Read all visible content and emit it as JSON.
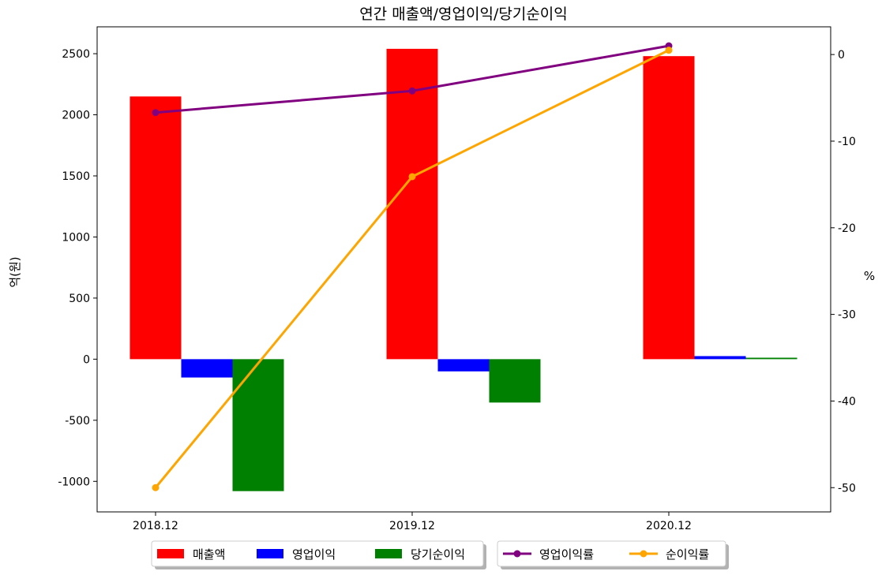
{
  "chart_data": {
    "type": "bar",
    "title": "연간 매출액/영업이익/당기순이익",
    "categories": [
      "2018.12",
      "2019.12",
      "2020.12"
    ],
    "ylabel": "억(원)",
    "y2label": "%",
    "ylim": [
      -1250,
      2720
    ],
    "y2lim": [
      -52.8,
      3.2
    ],
    "yticks": [
      -1000,
      -500,
      0,
      500,
      1000,
      1500,
      2000,
      2500
    ],
    "y2ticks": [
      -50,
      -40,
      -30,
      -20,
      -10,
      0
    ],
    "bar_series": [
      {
        "name": "매출액",
        "color": "#ff0000",
        "values": [
          2150,
          2540,
          2480
        ]
      },
      {
        "name": "영업이익",
        "color": "#0000ff",
        "values": [
          -150,
          -100,
          25
        ]
      },
      {
        "name": "당기순이익",
        "color": "#008000",
        "values": [
          -1080,
          -355,
          12
        ]
      }
    ],
    "line_series": [
      {
        "name": "영업이익률",
        "color": "#800080",
        "values": [
          -6.7,
          -4.2,
          1.0
        ]
      },
      {
        "name": "순이익률",
        "color": "#ffa500",
        "values": [
          -50.0,
          -14.1,
          0.5
        ]
      }
    ],
    "legend_position": "bottom-center",
    "grid": false
  }
}
